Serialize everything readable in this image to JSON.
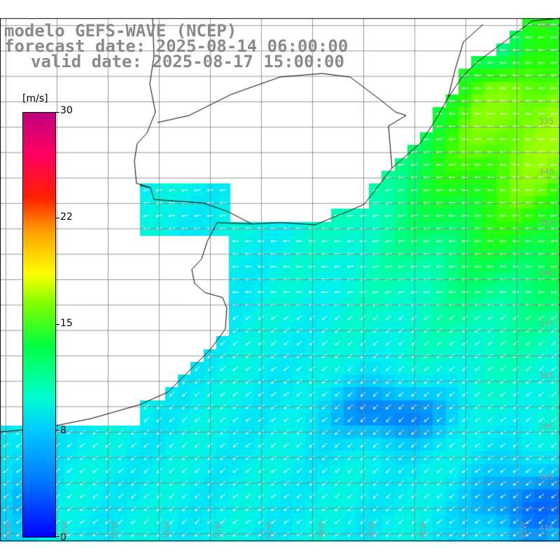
{
  "title": {
    "model": "modelo GEFS-WAVE (NCEP)",
    "forecast": "forecast date: 2025-08-14 06:00:00",
    "valid": "valid date: 2025-08-17 15:00:00"
  },
  "colorbar": {
    "unit": "[m/s]",
    "ticks": [
      "30",
      "22",
      "15",
      "8",
      "0"
    ],
    "tick_values": [
      30,
      22,
      15,
      8,
      0
    ],
    "min": 0,
    "max": 30,
    "colors": [
      "#0000ff",
      "#0070ff",
      "#00c8ff",
      "#00ffd0",
      "#00ff40",
      "#80ff00",
      "#ffff00",
      "#ffa000",
      "#ff2000",
      "#ff0060",
      "#c0007f"
    ]
  },
  "lat_labels": [
    "33S",
    "335",
    "345",
    "355",
    "365",
    "375",
    "385",
    "395",
    "405",
    "415"
  ],
  "lon_labels": [
    "61W",
    "59W",
    "57W",
    "55W",
    "53W",
    "51W",
    "49W",
    "47W",
    "45W",
    "43W"
  ],
  "colors": {
    "land": "#ffffff",
    "coast": "#000000",
    "grid": "#808080",
    "arrow": "#ffffff",
    "title": "#8a8a8a"
  },
  "field": {
    "description_units": "m/s",
    "rows": 36,
    "cols": 44
  }
}
